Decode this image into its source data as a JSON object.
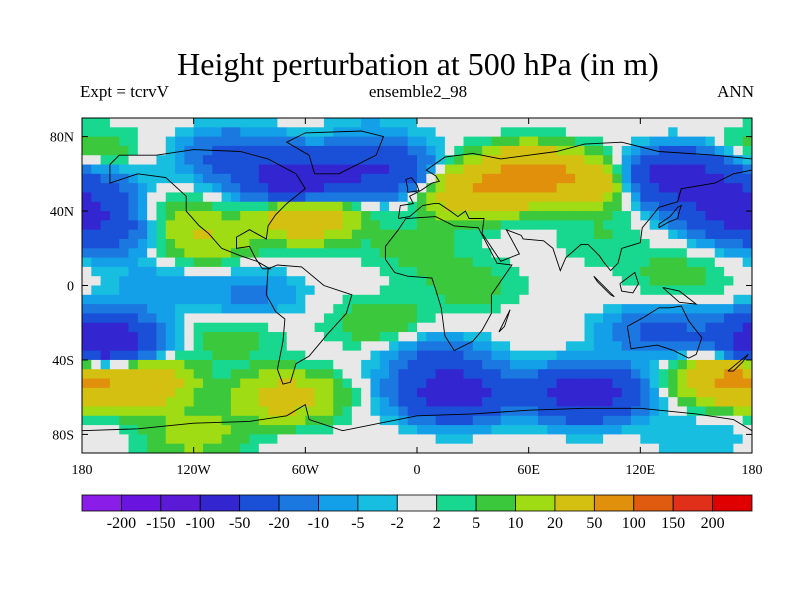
{
  "chart_data": {
    "type": "heatmap",
    "title": "Height perturbation at 500 hPa (in m)",
    "subtitle_left": "Expt = tcrvV",
    "subtitle_center": "ensemble2_98",
    "subtitle_right": "ANN",
    "xlim": [
      -180,
      180
    ],
    "ylim": [
      -90,
      90
    ],
    "x_ticks": [
      {
        "value": -180,
        "label": "180"
      },
      {
        "value": -120,
        "label": "120W"
      },
      {
        "value": -60,
        "label": "60W"
      },
      {
        "value": 0,
        "label": "0"
      },
      {
        "value": 60,
        "label": "60E"
      },
      {
        "value": 120,
        "label": "120E"
      },
      {
        "value": 180,
        "label": "180"
      }
    ],
    "y_ticks": [
      {
        "value": 80,
        "label": "80N"
      },
      {
        "value": 40,
        "label": "40N"
      },
      {
        "value": 0,
        "label": "0"
      },
      {
        "value": -40,
        "label": "40S"
      },
      {
        "value": -80,
        "label": "80S"
      }
    ],
    "levels": [
      -200,
      -150,
      -100,
      -50,
      -20,
      -10,
      -5,
      -2,
      2,
      5,
      10,
      20,
      50,
      100,
      150,
      200
    ],
    "level_labels": [
      "-200",
      "-150",
      "-100",
      "-50",
      "-20",
      "-10",
      "-5",
      "-2",
      "2",
      "5",
      "10",
      "20",
      "50",
      "100",
      "150",
      "200"
    ],
    "colors": [
      "#8a1ee8",
      "#6a14e0",
      "#5a1ad6",
      "#3326d0",
      "#1a50d8",
      "#1a78e0",
      "#14a0e8",
      "#18bee0",
      "#e8e8e8",
      "#18d890",
      "#3cc83c",
      "#a0dc14",
      "#d4c010",
      "#e0900a",
      "#e05a10",
      "#e0301a",
      "#e00000"
    ],
    "anomaly_centers": [
      {
        "lon": -175,
        "lat": 72,
        "value": 10
      },
      {
        "lon": -175,
        "lat": 52,
        "value": -20
      },
      {
        "lon": -165,
        "lat": 30,
        "value": -30
      },
      {
        "lon": -140,
        "lat": 38,
        "value": 10
      },
      {
        "lon": -100,
        "lat": 70,
        "value": -25
      },
      {
        "lon": -65,
        "lat": 57,
        "value": -80
      },
      {
        "lon": -60,
        "lat": 38,
        "value": 45
      },
      {
        "lon": -115,
        "lat": 25,
        "value": 20
      },
      {
        "lon": -20,
        "lat": 62,
        "value": -50
      },
      {
        "lon": -25,
        "lat": 82,
        "value": -5
      },
      {
        "lon": 0,
        "lat": 20,
        "value": 8
      },
      {
        "lon": 30,
        "lat": 0,
        "value": 8
      },
      {
        "lon": 60,
        "lat": 60,
        "value": 60
      },
      {
        "lon": 30,
        "lat": 50,
        "value": 40
      },
      {
        "lon": 95,
        "lat": 55,
        "value": 30
      },
      {
        "lon": 140,
        "lat": 58,
        "value": -80
      },
      {
        "lon": 170,
        "lat": 40,
        "value": -60
      },
      {
        "lon": 100,
        "lat": 25,
        "value": 5
      },
      {
        "lon": 140,
        "lat": 5,
        "value": 8
      },
      {
        "lon": -140,
        "lat": 0,
        "value": -8
      },
      {
        "lon": -90,
        "lat": -5,
        "value": -12
      },
      {
        "lon": -170,
        "lat": -30,
        "value": -100
      },
      {
        "lon": -150,
        "lat": -52,
        "value": 45
      },
      {
        "lon": -70,
        "lat": -60,
        "value": 30
      },
      {
        "lon": -100,
        "lat": -28,
        "value": 8
      },
      {
        "lon": -20,
        "lat": -20,
        "value": 10
      },
      {
        "lon": 10,
        "lat": -40,
        "value": -20
      },
      {
        "lon": 20,
        "lat": -58,
        "value": -80
      },
      {
        "lon": 90,
        "lat": -58,
        "value": -80
      },
      {
        "lon": 130,
        "lat": -25,
        "value": -25
      },
      {
        "lon": 170,
        "lat": -50,
        "value": 60
      },
      {
        "lon": 150,
        "lat": -80,
        "value": -5
      },
      {
        "lon": -120,
        "lat": -80,
        "value": 15
      }
    ]
  }
}
